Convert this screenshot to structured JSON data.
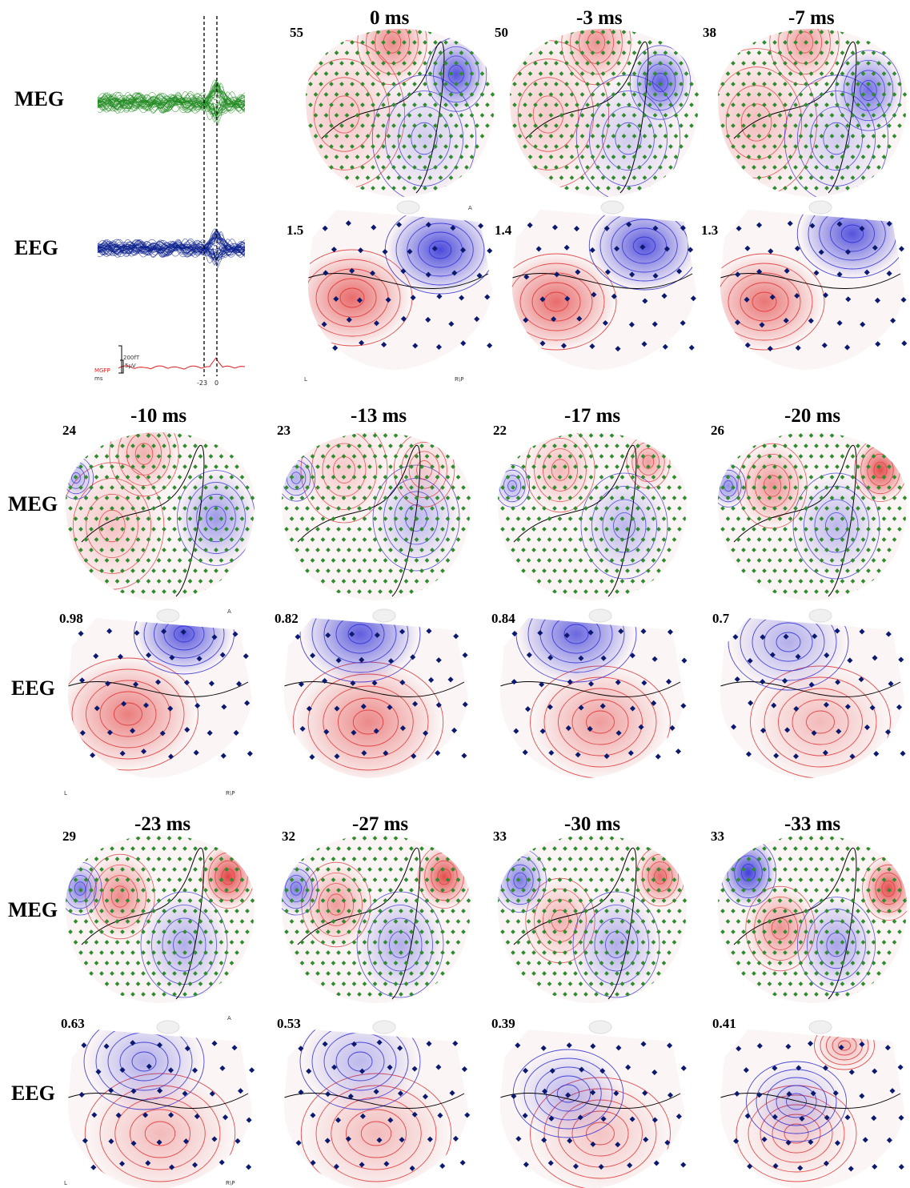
{
  "modality_labels": {
    "meg": "MEG",
    "eeg": "EEG"
  },
  "waveforms": {
    "cursor_labels": [
      "-23",
      "0"
    ],
    "mgfp_label": "MGFP",
    "ms_label": "ms",
    "scale_meg": "200fT",
    "scale_eeg": "5µV",
    "colors": {
      "meg": "#1f8a1f",
      "eeg": "#0a1f8c",
      "mgfp": "#e02020"
    }
  },
  "orientation_labels": {
    "anterior": "A",
    "left": "L",
    "right_posterior": "R\\P"
  },
  "colors": {
    "positive": "#e03030",
    "negative": "#2b2bd6",
    "zero_contour": "#000000",
    "meg_sensor": "#2e8b2e",
    "eeg_sensor": "#0b1a6e"
  },
  "panels": [
    {
      "time": "0 ms",
      "meg_peak": "55",
      "eeg_peak": "1.5"
    },
    {
      "time": "-3 ms",
      "meg_peak": "50",
      "eeg_peak": "1.4"
    },
    {
      "time": "-7 ms",
      "meg_peak": "38",
      "eeg_peak": "1.3"
    },
    {
      "time": "-10 ms",
      "meg_peak": "24",
      "eeg_peak": "0.98"
    },
    {
      "time": "-13 ms",
      "meg_peak": "23",
      "eeg_peak": "0.82"
    },
    {
      "time": "-17 ms",
      "meg_peak": "22",
      "eeg_peak": "0.84"
    },
    {
      "time": "-20 ms",
      "meg_peak": "26",
      "eeg_peak": "0.7"
    },
    {
      "time": "-23 ms",
      "meg_peak": "29",
      "eeg_peak": "0.63"
    },
    {
      "time": "-27 ms",
      "meg_peak": "32",
      "eeg_peak": "0.53"
    },
    {
      "time": "-30 ms",
      "meg_peak": "33",
      "eeg_peak": "0.39"
    },
    {
      "time": "-33 ms",
      "meg_peak": "33",
      "eeg_peak": "0.41"
    }
  ]
}
